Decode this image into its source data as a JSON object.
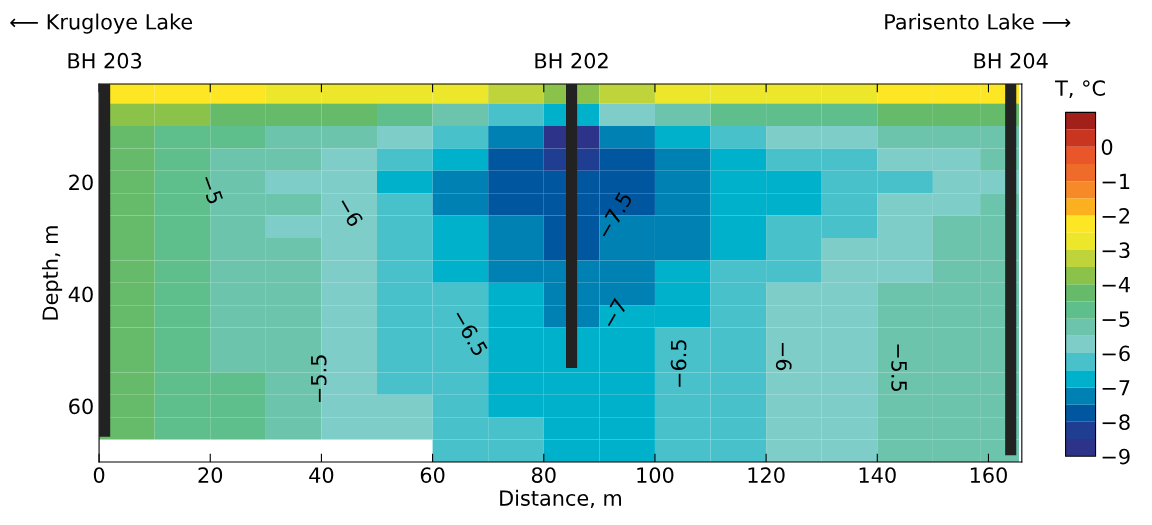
{
  "chart_data": {
    "type": "heatmap",
    "xlabel": "Distance, m",
    "ylabel": "Depth, m",
    "clabel": "T, °C",
    "x": [
      5,
      15,
      25,
      35,
      45,
      55,
      65,
      75,
      85,
      95,
      105,
      115,
      125,
      135,
      145,
      155,
      162
    ],
    "y": [
      4,
      8,
      12,
      16,
      20,
      24,
      28,
      32,
      36,
      40,
      44,
      48,
      52,
      56,
      60,
      64,
      68
    ],
    "cells": [
      [
        -2.25,
        -2.25,
        -2.25,
        -2.75,
        -2.75,
        -2.75,
        -2.75,
        -3.25,
        -3.75,
        -3.25,
        -2.75,
        -2.75,
        -2.75,
        -2.75,
        -2.25,
        -2.25,
        -2.25
      ],
      [
        -3.75,
        -3.75,
        -4.25,
        -4.25,
        -4.25,
        -4.75,
        -5.25,
        -6.25,
        -6.75,
        -5.75,
        -5.25,
        -4.75,
        -4.75,
        -4.75,
        -4.25,
        -4.25,
        -4.25
      ],
      [
        -4.25,
        -4.75,
        -4.75,
        -5.25,
        -5.25,
        -5.75,
        -6.25,
        -7.25,
        -8.75,
        -7.25,
        -6.75,
        -6.25,
        -5.75,
        -5.75,
        -5.25,
        -5.25,
        -5.25
      ],
      [
        -4.25,
        -4.75,
        -5.25,
        -5.25,
        -5.75,
        -6.25,
        -6.75,
        -7.75,
        -8.25,
        -7.75,
        -7.25,
        -6.75,
        -6.25,
        -6.25,
        -5.75,
        -5.75,
        -5.25
      ],
      [
        -4.25,
        -4.75,
        -5.25,
        -5.75,
        -5.75,
        -6.75,
        -7.25,
        -7.75,
        -7.75,
        -7.75,
        -7.25,
        -6.75,
        -6.75,
        -6.25,
        -6.25,
        -5.75,
        -5.75
      ],
      [
        -4.25,
        -4.75,
        -5.25,
        -5.25,
        -5.75,
        -6.25,
        -7.25,
        -7.75,
        -7.75,
        -7.75,
        -7.25,
        -6.75,
        -6.75,
        -6.25,
        -5.75,
        -5.75,
        -5.25
      ],
      [
        -4.25,
        -4.75,
        -5.25,
        -5.75,
        -5.75,
        -6.25,
        -6.75,
        -7.25,
        -7.75,
        -7.25,
        -7.25,
        -6.75,
        -6.25,
        -6.25,
        -5.75,
        -5.25,
        -5.25
      ],
      [
        -4.25,
        -4.75,
        -5.25,
        -5.25,
        -5.75,
        -6.25,
        -6.75,
        -7.25,
        -7.75,
        -7.25,
        -7.25,
        -6.75,
        -6.25,
        -5.75,
        -5.75,
        -5.25,
        -5.25
      ],
      [
        -4.25,
        -4.75,
        -5.25,
        -5.25,
        -5.75,
        -6.25,
        -6.75,
        -7.25,
        -7.25,
        -7.25,
        -6.75,
        -6.25,
        -6.25,
        -5.75,
        -5.75,
        -5.25,
        -5.25
      ],
      [
        -4.25,
        -4.75,
        -5.25,
        -5.25,
        -5.75,
        -6.25,
        -6.25,
        -6.75,
        -7.25,
        -7.25,
        -6.75,
        -6.25,
        -5.75,
        -5.75,
        -5.25,
        -5.25,
        -5.25
      ],
      [
        -4.25,
        -4.75,
        -5.25,
        -5.25,
        -5.75,
        -6.25,
        -6.25,
        -6.75,
        -7.25,
        -6.75,
        -6.75,
        -6.25,
        -5.75,
        -5.75,
        -5.25,
        -5.25,
        -5.25
      ],
      [
        -4.25,
        -4.75,
        -5.25,
        -5.25,
        -5.75,
        -6.25,
        -6.25,
        -6.75,
        -6.75,
        -6.75,
        -6.25,
        -6.25,
        -5.75,
        -5.75,
        -5.25,
        -5.25,
        -5.25
      ],
      [
        -4.25,
        -4.75,
        -5.25,
        -5.25,
        -5.75,
        -6.25,
        -6.25,
        -6.75,
        -6.75,
        -6.75,
        -6.25,
        -6.25,
        -5.75,
        -5.75,
        -5.25,
        -5.25,
        -5.25
      ],
      [
        -4.25,
        -4.75,
        -4.75,
        -5.25,
        -5.75,
        -6.25,
        -6.25,
        -6.75,
        -6.75,
        -6.75,
        -6.25,
        -6.25,
        -5.75,
        -5.75,
        -5.25,
        -5.25,
        -5.25
      ],
      [
        -4.25,
        -4.75,
        -4.75,
        -5.25,
        -5.75,
        -5.75,
        -6.25,
        -6.75,
        -6.75,
        -6.75,
        -6.25,
        -6.25,
        -5.75,
        -5.75,
        -5.25,
        -5.25,
        -5.25
      ],
      [
        -4.25,
        -4.75,
        -4.75,
        -5.25,
        -5.75,
        -5.75,
        -6.25,
        -6.25,
        -6.75,
        -6.75,
        -6.25,
        -6.25,
        -5.75,
        -5.75,
        -5.25,
        -5.25,
        -5.25
      ],
      [
        null,
        null,
        null,
        null,
        null,
        null,
        -6.25,
        -6.25,
        -6.75,
        -6.75,
        -6.25,
        -6.25,
        -5.75,
        -5.75,
        -5.25,
        -5.25,
        -5.25
      ]
    ],
    "clim": [
      -9,
      1
    ],
    "cticks": [
      0,
      -1,
      -2,
      -3,
      -4,
      -5,
      -6,
      -7,
      -8,
      -9
    ],
    "series": [
      {
        "type": "bar",
        "x": [
          1,
          85,
          164
        ],
        "base": [
          2.5,
          2.5,
          2.5
        ],
        "values": [
          63,
          50.7,
          66.3
        ],
        "color": "#222222"
      }
    ],
    "xlim": [
      0,
      166
    ],
    "xticks": [
      0,
      20,
      40,
      60,
      80,
      100,
      120,
      140,
      160
    ],
    "ylim": [
      70,
      2.5
    ],
    "yticks": [
      20,
      40,
      60
    ],
    "annotations": [
      "⟵ Krugloye Lake",
      "Parisento Lake ⟶",
      "BH 203",
      "BH 202",
      "BH 204",
      "−5",
      "−6",
      "−5.5",
      "−6.5",
      "−7.5",
      "−7",
      "−6.5",
      "−6",
      "−5.5"
    ],
    "grid": false
  }
}
